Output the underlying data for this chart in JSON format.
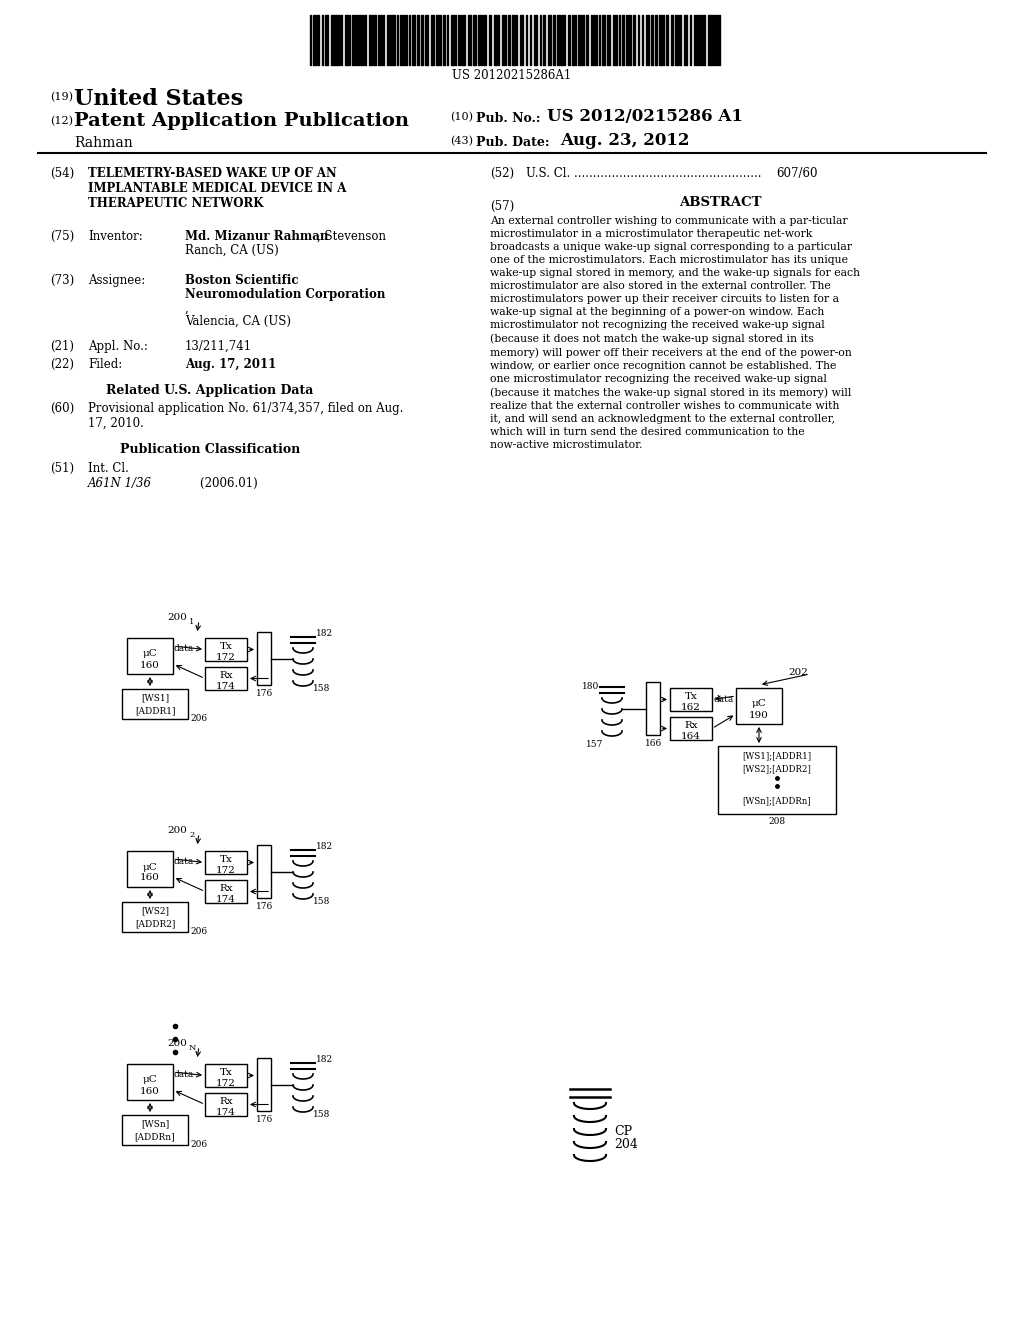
{
  "bg": "#ffffff",
  "barcode_number": "US 20120215286A1",
  "pub_num": "US 2012/0215286 A1",
  "pub_date": "Aug. 23, 2012",
  "author": "Rahman",
  "title54": "TELEMETRY-BASED WAKE UP OF AN\nIMPLANTABLE MEDICAL DEVICE IN A\nTHERAPEUTIC NETWORK",
  "appl_no": "13/211,741",
  "filed": "Aug. 17, 2011",
  "prov_app": "Provisional application No. 61/374,357, filed on Aug.\n17, 2010.",
  "int_cl_val": "A61N 1/36",
  "int_cl_date": "(2006.01)",
  "us_cl_val": "607/60",
  "abstract": "An external controller wishing to communicate with a par-ticular microstimulator in a microstimulator therapeutic net-work broadcasts a unique wake-up signal corresponding to a particular one of the microstimulators. Each microstimulator has its unique wake-up signal stored in memory, and the wake-up signals for each microstimulator are also stored in the external controller. The microstimulators power up their receiver circuits to listen for a wake-up signal at the beginning of a power-on window. Each microstimulator not recognizing the received wake-up signal (because it does not match the wake-up signal stored in its memory) will power off their receivers at the end of the power-on window, or earlier once recognition cannot be established. The one microstimulator recognizing the received wake-up signal (because it matches the wake-up signal stored in its memory) will realize that the external controller wishes to communicate with it, and will send an acknowledgment to the external controller, which will in turn send the desired communication to the now-active microstimulator."
}
